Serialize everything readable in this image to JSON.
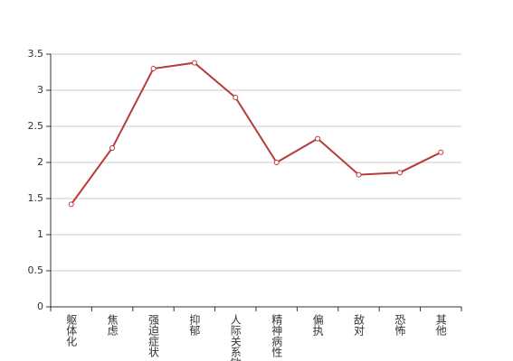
{
  "chart_data": {
    "type": "line",
    "categories": [
      "躯体化",
      "焦虑",
      "强迫症状",
      "抑郁",
      "人际关系敏感",
      "精神病性",
      "偏执",
      "敌对",
      "恐怖",
      "其他"
    ],
    "values": [
      1.42,
      2.2,
      3.3,
      3.38,
      2.9,
      2.0,
      2.33,
      1.83,
      1.86,
      2.14
    ],
    "color": "#b83b3b",
    "ylim": [
      0,
      3.5
    ],
    "yticks": [
      0,
      0.5,
      1,
      1.5,
      2,
      2.5,
      3,
      3.5
    ],
    "grid": true
  }
}
